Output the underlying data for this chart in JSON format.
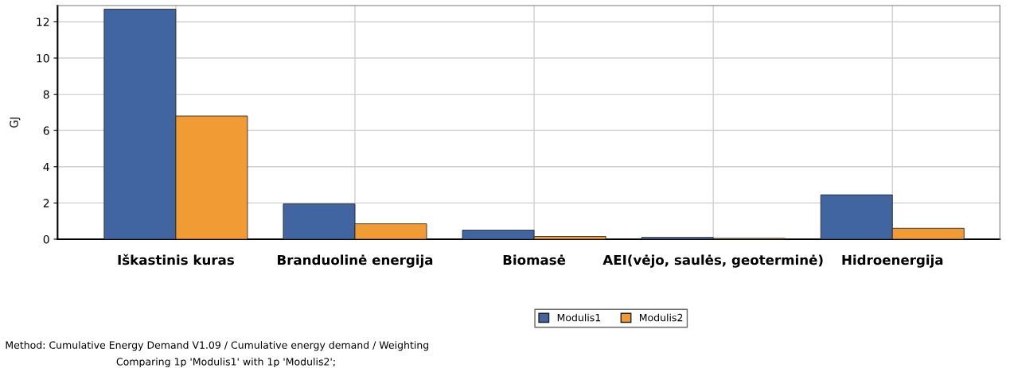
{
  "chart_data": {
    "type": "bar",
    "ylabel": "GJ",
    "categories": [
      "Iškastinis kuras",
      "Branduolinė energija",
      "Biomasė",
      "AEI(vėjo, saulės, geoterminė)",
      "Hidroenergija"
    ],
    "series": [
      {
        "name": "Modulis1",
        "color": "#4165a0",
        "values": [
          12.7,
          1.95,
          0.5,
          0.1,
          2.45
        ]
      },
      {
        "name": "Modulis2",
        "color": "#f19b35",
        "values": [
          6.8,
          0.85,
          0.15,
          0.05,
          0.6
        ]
      }
    ],
    "ylim": [
      0,
      12.9
    ],
    "yticks": [
      0,
      2,
      4,
      6,
      8,
      10,
      12
    ],
    "grid": true,
    "legend": "bottom",
    "annotations": [
      "Method: Cumulative Energy Demand V1.09 / Cumulative energy demand / Weighting",
      "Comparing 1p 'Modulis1' with 1p 'Modulis2';"
    ]
  }
}
